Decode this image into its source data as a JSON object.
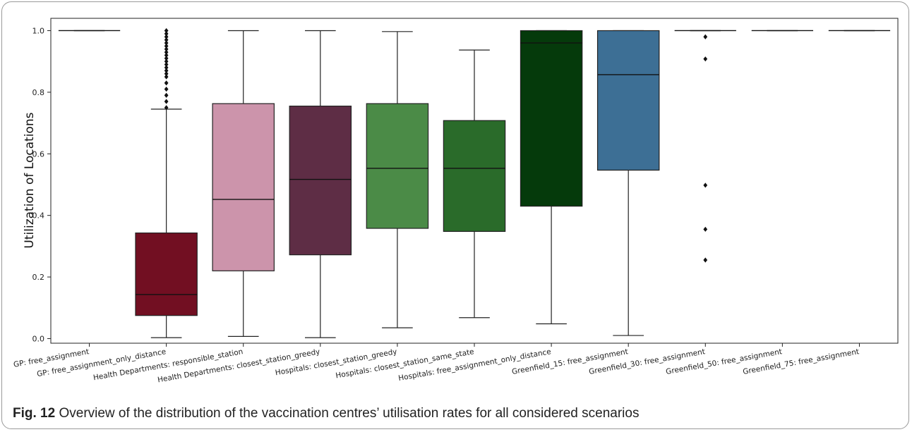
{
  "caption": {
    "label": "Fig. 12",
    "text": "Overview of the distribution of the vaccination centres’ utilisation rates for all considered scenarios"
  },
  "chart_data": {
    "type": "box",
    "ylabel": "Utilization of Locations",
    "xlabel": "",
    "ylim": [
      -0.015,
      1.04
    ],
    "yticks": [
      "0.0",
      "0.2",
      "0.4",
      "0.6",
      "0.8",
      "1.0"
    ],
    "grid": false,
    "categories": [
      "GP: free_assignment",
      "GP: free_assignment_only_distance",
      "Health Departments: responsible_station",
      "Health Departments: closest_station_greedy",
      "Hospitals: closest_station_greedy",
      "Hospitals: closest_station_same_state",
      "Hospitals: free_assignment_only_distance",
      "Greenfield_15: free_assignment",
      "Greenfield_30: free_assignment",
      "Greenfield_50: free_assignment",
      "Greenfield_75: free_assignment"
    ],
    "boxes": [
      {
        "color": "#7a1528",
        "whisker_low": 1.0,
        "q1": 1.0,
        "median": 1.0,
        "q3": 1.0,
        "whisker_high": 1.0,
        "outliers": []
      },
      {
        "color": "#720f22",
        "whisker_low": 0.003,
        "q1": 0.075,
        "median": 0.143,
        "q3": 0.343,
        "whisker_high": 0.745,
        "outliers": [
          0.75,
          0.77,
          0.79,
          0.81,
          0.83,
          0.85,
          0.86,
          0.87,
          0.88,
          0.89,
          0.9,
          0.91,
          0.92,
          0.93,
          0.94,
          0.95,
          0.96,
          0.97,
          0.98,
          0.99,
          1.0
        ]
      },
      {
        "color": "#cc94ab",
        "whisker_low": 0.007,
        "q1": 0.22,
        "median": 0.452,
        "q3": 0.763,
        "whisker_high": 1.0,
        "outliers": []
      },
      {
        "color": "#5e2d45",
        "whisker_low": 0.003,
        "q1": 0.272,
        "median": 0.517,
        "q3": 0.755,
        "whisker_high": 1.0,
        "outliers": []
      },
      {
        "color": "#4b8b47",
        "whisker_low": 0.035,
        "q1": 0.358,
        "median": 0.553,
        "q3": 0.763,
        "whisker_high": 0.997,
        "outliers": []
      },
      {
        "color": "#2a6b2a",
        "whisker_low": 0.068,
        "q1": 0.348,
        "median": 0.553,
        "q3": 0.708,
        "whisker_high": 0.937,
        "outliers": []
      },
      {
        "color": "#053a0b",
        "whisker_low": 0.048,
        "q1": 0.43,
        "median": 0.96,
        "q3": 1.0,
        "whisker_high": 1.0,
        "outliers": []
      },
      {
        "color": "#3d6f95",
        "whisker_low": 0.01,
        "q1": 0.547,
        "median": 0.857,
        "q3": 1.0,
        "whisker_high": 1.0,
        "outliers": []
      },
      {
        "color": "#555555",
        "whisker_low": 1.0,
        "q1": 1.0,
        "median": 1.0,
        "q3": 1.0,
        "whisker_high": 1.0,
        "outliers": [
          0.98,
          0.908,
          0.498,
          0.355,
          0.255
        ]
      },
      {
        "color": "#555555",
        "whisker_low": 1.0,
        "q1": 1.0,
        "median": 1.0,
        "q3": 1.0,
        "whisker_high": 1.0,
        "outliers": []
      },
      {
        "color": "#555555",
        "whisker_low": 1.0,
        "q1": 1.0,
        "median": 1.0,
        "q3": 1.0,
        "whisker_high": 1.0,
        "outliers": []
      }
    ]
  }
}
